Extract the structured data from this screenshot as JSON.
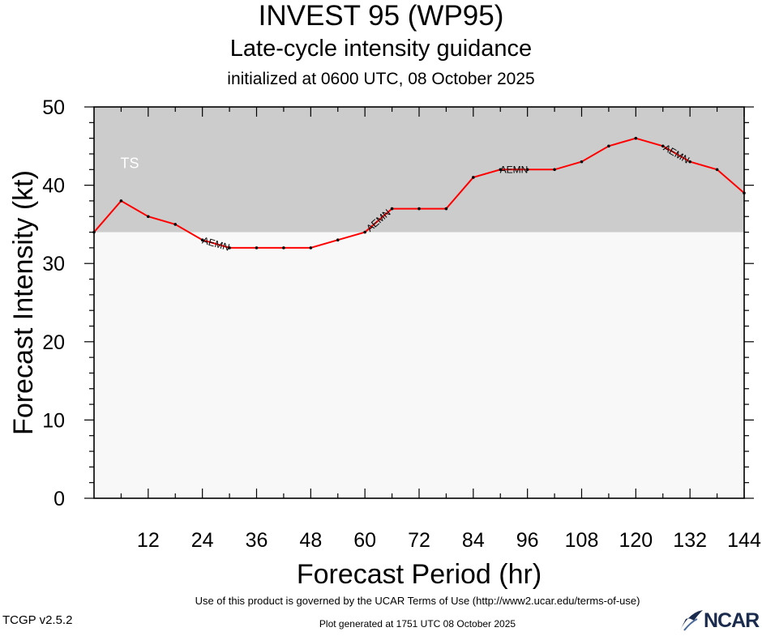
{
  "header": {
    "title": "INVEST 95 (WP95)",
    "subtitle": "Late-cycle intensity guidance",
    "init": "initialized at 0600 UTC, 08 October 2025"
  },
  "footer": {
    "terms": "Use of this product is governed by the UCAR Terms of Use (http://www2.ucar.edu/terms-of-use)",
    "version": "TCGP v2.5.2",
    "generated": "Plot generated at 1751 UTC   08 October 2025",
    "logo": "NCAR"
  },
  "colors": {
    "ts_band": "#cccccc",
    "td_band": "#f8f8f8",
    "line": "#ff0000",
    "logo": "#1a2b4d"
  },
  "chart_data": {
    "type": "line",
    "xlabel": "Forecast Period (hr)",
    "ylabel": "Forecast Intensity (kt)",
    "xlim": [
      0,
      144
    ],
    "ylim": [
      0,
      50
    ],
    "xticks": [
      12,
      24,
      36,
      48,
      60,
      72,
      84,
      96,
      108,
      120,
      132,
      144
    ],
    "yticks": [
      0,
      10,
      20,
      30,
      40,
      50
    ],
    "bands": [
      {
        "label": "",
        "from": 0,
        "to": 34
      },
      {
        "label": "TS",
        "from": 34,
        "to": 64
      }
    ],
    "series": [
      {
        "name": "AEMN",
        "x": [
          0,
          6,
          12,
          18,
          24,
          30,
          36,
          42,
          48,
          54,
          60,
          66,
          72,
          78,
          84,
          90,
          96,
          102,
          108,
          114,
          120,
          126,
          132,
          138,
          144
        ],
        "y": [
          34,
          38,
          36,
          35,
          33,
          32,
          32,
          32,
          32,
          33,
          34,
          37,
          37,
          37,
          41,
          42,
          42,
          42,
          43,
          45,
          46,
          45,
          43,
          42,
          39
        ],
        "label_x": [
          27,
          63,
          93,
          129
        ]
      }
    ]
  }
}
